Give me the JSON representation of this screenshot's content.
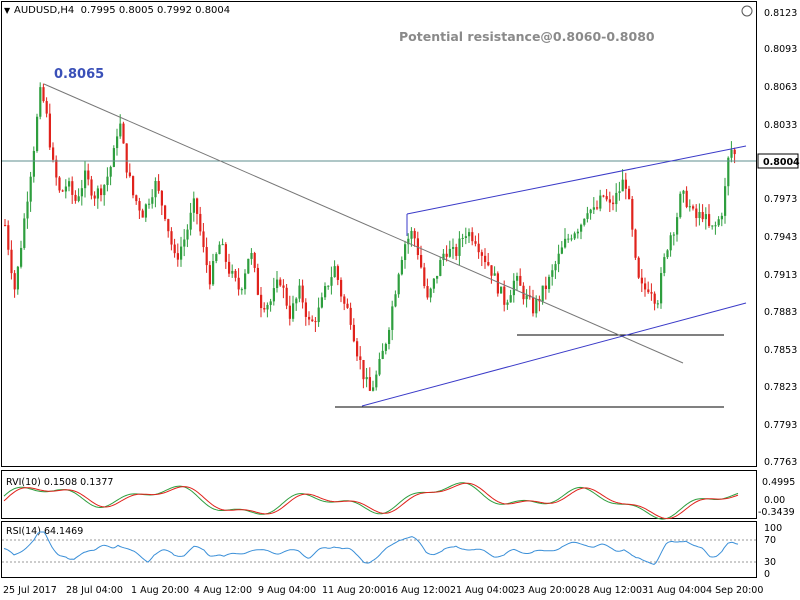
{
  "header": {
    "collapse_glyph": "▼",
    "symbol_line": "AUDUSD,H4  0.7995 0.8005 0.7992 0.8004"
  },
  "annotations": {
    "high_marker": "0.8065",
    "resistance_note": "Potential resistance@0.8060-0.8080"
  },
  "price_axis": {
    "ticks": [
      "0.8123",
      "0.8093",
      "0.8063",
      "0.8033",
      "0.7973",
      "0.7943",
      "0.7913",
      "0.7883",
      "0.7853",
      "0.7823",
      "0.7793",
      "0.7763"
    ],
    "current_price": "0.8004"
  },
  "rvi_panel": {
    "label": "RVI(10) 0.1508 0.1377",
    "ticks": [
      "0.4995",
      "0.00",
      "-0.3439"
    ]
  },
  "rsi_panel": {
    "label": "RSI(14) 64.1469",
    "ticks": [
      "100",
      "70",
      "30",
      "0"
    ]
  },
  "time_axis": {
    "labels": [
      "25 Jul 2017",
      "28 Jul 04:00",
      "1 Aug 20:00",
      "4 Aug 12:00",
      "9 Aug 04:00",
      "11 Aug 20:00",
      "16 Aug 12:00",
      "21 Aug 04:00",
      "23 Aug 20:00",
      "28 Aug 12:00",
      "31 Aug 04:00",
      "4 Sep 20:00"
    ]
  },
  "colors": {
    "bull_candle": "#2e9e3e",
    "bear_candle": "#e0221c",
    "trendline_blue": "#3a3ac8",
    "rvi_main": "#2e9e3e",
    "rvi_signal": "#e0221c",
    "rsi_line": "#3a8fd8",
    "annotation_blue": "#3a50b8",
    "annotation_gray": "#8a8a8a"
  },
  "chart_data": {
    "type": "candlestick",
    "symbol": "AUDUSD",
    "timeframe": "H4",
    "ylim": [
      0.775,
      0.8135
    ],
    "close_path": [
      [
        0,
        0.795
      ],
      [
        10,
        0.7895
      ],
      [
        20,
        0.796
      ],
      [
        28,
        0.801
      ],
      [
        35,
        0.806
      ],
      [
        40,
        0.805
      ],
      [
        48,
        0.8
      ],
      [
        55,
        0.7975
      ],
      [
        62,
        0.7985
      ],
      [
        70,
        0.797
      ],
      [
        80,
        0.799
      ],
      [
        90,
        0.7975
      ],
      [
        100,
        0.7985
      ],
      [
        108,
        0.8005
      ],
      [
        114,
        0.804
      ],
      [
        120,
        0.8005
      ],
      [
        128,
        0.7975
      ],
      [
        138,
        0.796
      ],
      [
        150,
        0.7985
      ],
      [
        160,
        0.796
      ],
      [
        170,
        0.792
      ],
      [
        180,
        0.794
      ],
      [
        190,
        0.797
      ],
      [
        198,
        0.793
      ],
      [
        205,
        0.7905
      ],
      [
        215,
        0.7935
      ],
      [
        225,
        0.791
      ],
      [
        235,
        0.7895
      ],
      [
        245,
        0.793
      ],
      [
        255,
        0.7885
      ],
      [
        265,
        0.7885
      ],
      [
        275,
        0.7905
      ],
      [
        285,
        0.7875
      ],
      [
        295,
        0.7895
      ],
      [
        305,
        0.7865
      ],
      [
        315,
        0.788
      ],
      [
        322,
        0.79
      ],
      [
        330,
        0.7915
      ],
      [
        338,
        0.7885
      ],
      [
        345,
        0.7875
      ],
      [
        352,
        0.7845
      ],
      [
        360,
        0.782
      ],
      [
        365,
        0.781
      ],
      [
        372,
        0.7825
      ],
      [
        380,
        0.785
      ],
      [
        388,
        0.7885
      ],
      [
        395,
        0.792
      ],
      [
        400,
        0.7935
      ],
      [
        408,
        0.7945
      ],
      [
        415,
        0.792
      ],
      [
        422,
        0.7885
      ],
      [
        430,
        0.7905
      ],
      [
        440,
        0.793
      ],
      [
        450,
        0.7925
      ],
      [
        460,
        0.7945
      ],
      [
        470,
        0.794
      ],
      [
        478,
        0.7925
      ],
      [
        485,
        0.7915
      ],
      [
        492,
        0.79
      ],
      [
        500,
        0.7885
      ],
      [
        510,
        0.7905
      ],
      [
        520,
        0.789
      ],
      [
        528,
        0.788
      ],
      [
        535,
        0.789
      ],
      [
        545,
        0.7905
      ],
      [
        552,
        0.792
      ],
      [
        560,
        0.7935
      ],
      [
        568,
        0.7945
      ],
      [
        575,
        0.795
      ],
      [
        582,
        0.7965
      ],
      [
        590,
        0.796
      ],
      [
        598,
        0.7975
      ],
      [
        605,
        0.7965
      ],
      [
        612,
        0.7975
      ],
      [
        620,
        0.799
      ],
      [
        625,
        0.796
      ],
      [
        632,
        0.7905
      ],
      [
        638,
        0.7895
      ],
      [
        645,
        0.79
      ],
      [
        652,
        0.7885
      ],
      [
        658,
        0.7915
      ],
      [
        664,
        0.794
      ],
      [
        670,
        0.795
      ],
      [
        676,
        0.7975
      ],
      [
        682,
        0.797
      ],
      [
        690,
        0.7955
      ],
      [
        698,
        0.796
      ],
      [
        705,
        0.7945
      ],
      [
        712,
        0.795
      ],
      [
        718,
        0.7965
      ],
      [
        724,
        0.801
      ],
      [
        728,
        0.8015
      ],
      [
        733,
        0.7995
      ],
      [
        737,
        0.8004
      ]
    ],
    "annotations": {
      "swing_high": 0.8065,
      "resistance_zone": [
        0.806,
        0.808
      ],
      "support_lines": [
        0.781,
        0.787
      ],
      "current_price": 0.8004,
      "trendlines": [
        {
          "name": "downtrend",
          "from": [
            0.8065
          ],
          "to": [
            0.7855
          ]
        },
        {
          "name": "channel_lower",
          "from": [
            0.781
          ],
          "to": [
            0.7895
          ]
        },
        {
          "name": "channel_upper",
          "from": [
            0.796
          ],
          "to": [
            0.802
          ]
        }
      ]
    },
    "rvi": {
      "main": 0.1508,
      "signal": 0.1377,
      "ylim": [
        -0.3439,
        0.4995
      ]
    },
    "rsi": {
      "value": 64.1469,
      "levels": [
        30,
        70
      ],
      "ylim": [
        0,
        100
      ]
    }
  }
}
